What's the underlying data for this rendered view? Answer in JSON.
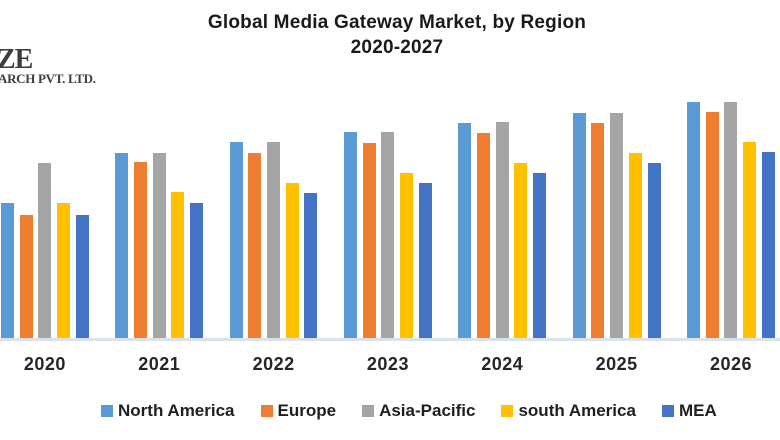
{
  "logo": {
    "line1": "ZE",
    "line2": "ARCH PVT. LTD."
  },
  "title": {
    "line1": "Global Media Gateway Market, by Region",
    "line2": "2020-2027"
  },
  "colors": {
    "background": "#FFFFFF",
    "title_text": "#1A1A1A",
    "axis_label_text": "#262626",
    "legend_text": "#1F1F1F",
    "axis_line": "#DBE2E8",
    "logo_text": "#3D3D3D"
  },
  "chart_data": {
    "type": "bar",
    "title": "Global Media Gateway Market, by Region",
    "subtitle": "2020-2027",
    "categories": [
      "2020",
      "2021",
      "2022",
      "2023",
      "2024",
      "2025",
      "2026"
    ],
    "series": [
      {
        "name": "North America",
        "color": "#5B9BD5",
        "values": [
          135,
          185,
          196,
          206,
          215,
          225,
          236
        ]
      },
      {
        "name": "Europe",
        "color": "#ED7D31",
        "values": [
          123,
          176,
          185,
          195,
          205,
          215,
          226
        ]
      },
      {
        "name": "Asia-Pacific",
        "color": "#A5A5A5",
        "values": [
          175,
          185,
          196,
          206,
          216,
          225,
          236
        ]
      },
      {
        "name": "south America",
        "color": "#FFC000",
        "values": [
          135,
          146,
          155,
          165,
          175,
          185,
          196
        ]
      },
      {
        "name": "MEA",
        "color": "#4472C4",
        "values": [
          123,
          135,
          145,
          155,
          165,
          175,
          186
        ]
      }
    ],
    "xlabel": "",
    "ylabel": "",
    "value_units": "relative bar height in pixels (no y-axis scale shown)",
    "ylim": [
      0,
      260
    ],
    "grid": false,
    "y_axis_visible": false,
    "legend_position": "bottom"
  }
}
